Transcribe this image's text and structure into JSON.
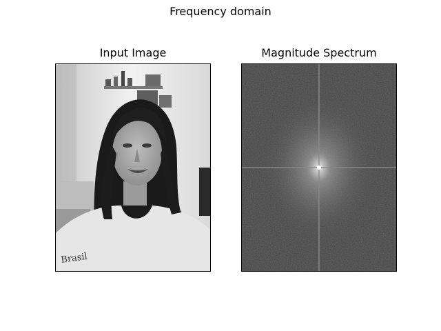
{
  "figure": {
    "title": "Frequency domain"
  },
  "panels": [
    {
      "title": "Input Image",
      "content": "grayscale-selfie-photo"
    },
    {
      "title": "Magnitude Spectrum",
      "content": "fft-magnitude-spectrum"
    }
  ]
}
